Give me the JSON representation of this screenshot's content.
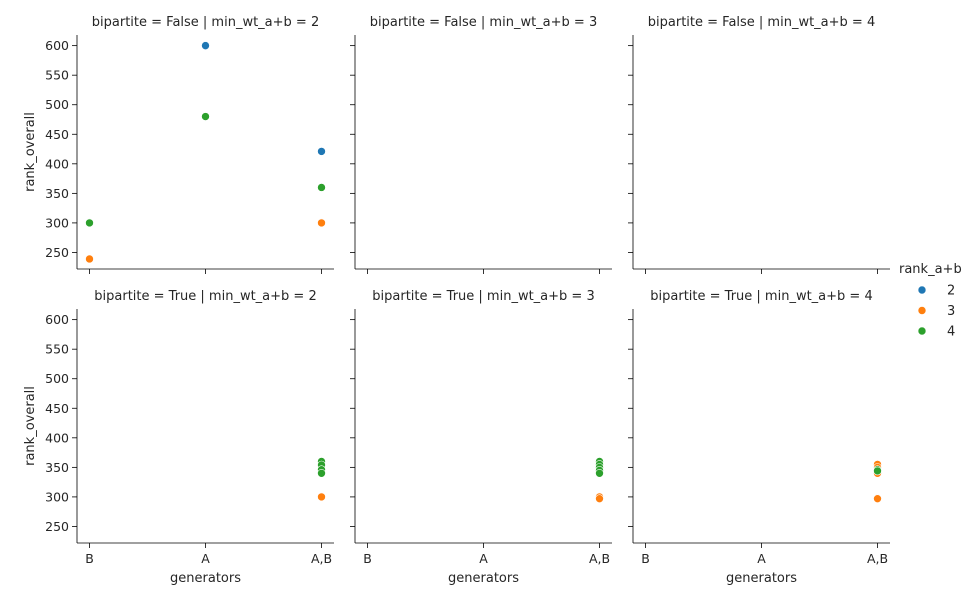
{
  "chart_data": {
    "type": "scatter",
    "x_categories": [
      "B",
      "A",
      "A,B"
    ],
    "xlabel": "generators",
    "ylabel": "rank_overall",
    "ylim": [
      222,
      618
    ],
    "yticks": [
      250,
      300,
      350,
      400,
      450,
      500,
      550,
      600
    ],
    "legend": {
      "title": "rank_a+b",
      "position": "right",
      "entries": [
        {
          "label": "2",
          "color": "#1f77b4"
        },
        {
          "label": "3",
          "color": "#ff7f0e"
        },
        {
          "label": "4",
          "color": "#2ca02c"
        }
      ]
    },
    "facet_rows": [
      "False",
      "True"
    ],
    "facet_cols": [
      "2",
      "3",
      "4"
    ],
    "panels": [
      {
        "title": "bipartite = False | min_wt_a+b = 2",
        "points": [
          {
            "x": "A",
            "y": 600,
            "hue": "2"
          },
          {
            "x": "A",
            "y": 480,
            "hue": "4"
          },
          {
            "x": "A,B",
            "y": 421,
            "hue": "2"
          },
          {
            "x": "A,B",
            "y": 360,
            "hue": "4"
          },
          {
            "x": "A,B",
            "y": 300,
            "hue": "3"
          },
          {
            "x": "B",
            "y": 300,
            "hue": "4"
          },
          {
            "x": "B",
            "y": 239,
            "hue": "3"
          }
        ]
      },
      {
        "title": "bipartite = False | min_wt_a+b = 3",
        "points": []
      },
      {
        "title": "bipartite = False | min_wt_a+b = 4",
        "points": []
      },
      {
        "title": "bipartite = True | min_wt_a+b = 2",
        "points": [
          {
            "x": "A,B",
            "y": 360,
            "hue": "4"
          },
          {
            "x": "A,B",
            "y": 354,
            "hue": "4"
          },
          {
            "x": "A,B",
            "y": 346,
            "hue": "4"
          },
          {
            "x": "A,B",
            "y": 340,
            "hue": "4"
          },
          {
            "x": "A,B",
            "y": 300,
            "hue": "3"
          }
        ]
      },
      {
        "title": "bipartite = True | min_wt_a+b = 3",
        "points": [
          {
            "x": "A,B",
            "y": 360,
            "hue": "4"
          },
          {
            "x": "A,B",
            "y": 355,
            "hue": "4"
          },
          {
            "x": "A,B",
            "y": 350,
            "hue": "4"
          },
          {
            "x": "A,B",
            "y": 345,
            "hue": "4"
          },
          {
            "x": "A,B",
            "y": 340,
            "hue": "4"
          },
          {
            "x": "A,B",
            "y": 300,
            "hue": "3"
          },
          {
            "x": "A,B",
            "y": 297,
            "hue": "3"
          }
        ]
      },
      {
        "title": "bipartite = True | min_wt_a+b = 4",
        "points": [
          {
            "x": "A,B",
            "y": 355,
            "hue": "3"
          },
          {
            "x": "A,B",
            "y": 350,
            "hue": "3"
          },
          {
            "x": "A,B",
            "y": 345,
            "hue": "3"
          },
          {
            "x": "A,B",
            "y": 340,
            "hue": "3"
          },
          {
            "x": "A,B",
            "y": 346,
            "hue": "4"
          },
          {
            "x": "A,B",
            "y": 344,
            "hue": "4"
          },
          {
            "x": "A,B",
            "y": 297,
            "hue": "3"
          }
        ]
      }
    ]
  }
}
